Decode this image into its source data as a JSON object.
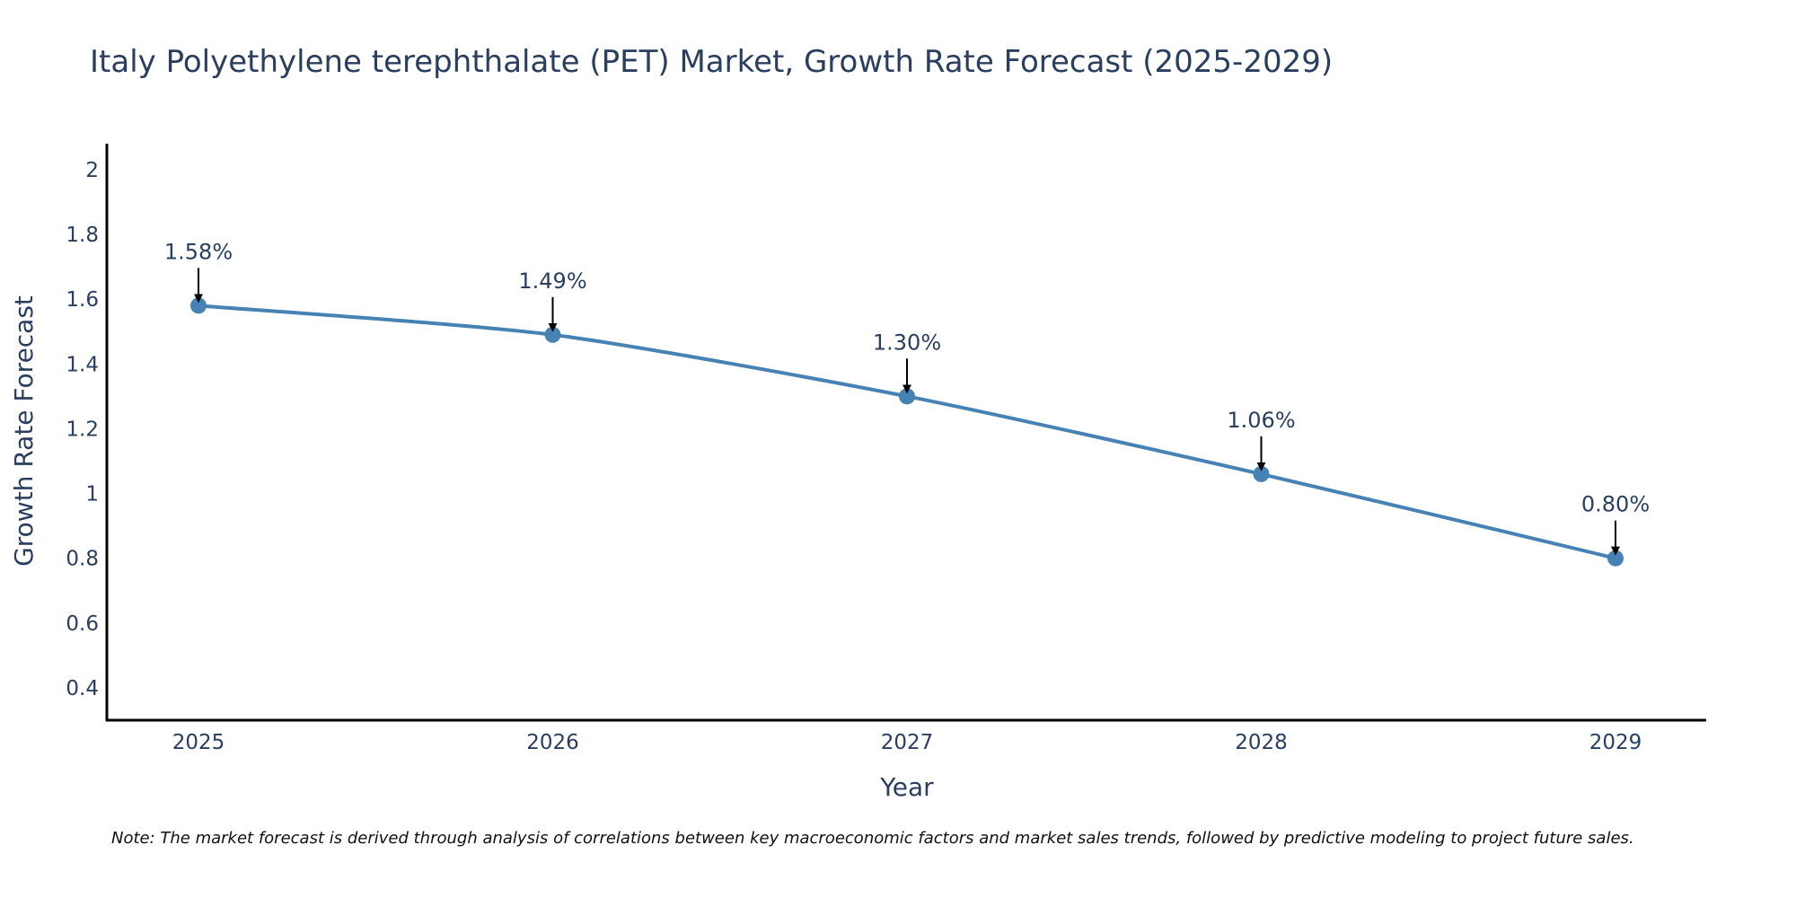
{
  "chart_data": {
    "type": "line",
    "title": "Italy Polyethylene terephthalate (PET) Market, Growth Rate Forecast (2025-2029)",
    "xlabel": "Year",
    "ylabel": "Growth Rate Forecast",
    "categories": [
      "2025",
      "2026",
      "2027",
      "2028",
      "2029"
    ],
    "series": [
      {
        "name": "Growth Rate Forecast",
        "values": [
          1.58,
          1.49,
          1.3,
          1.06,
          0.8
        ],
        "labels": [
          "1.58%",
          "1.49%",
          "1.30%",
          "1.06%",
          "0.80%"
        ]
      }
    ],
    "ylim": [
      0.3,
      2.08
    ],
    "yticks": [
      0.4,
      0.6,
      0.8,
      1.0,
      1.2,
      1.4,
      1.6,
      1.8,
      2.0
    ],
    "ytick_labels": [
      "0.4",
      "0.6",
      "0.8",
      "1",
      "1.2",
      "1.4",
      "1.6",
      "1.8",
      "2"
    ],
    "grid": false,
    "note": "Note: The market forecast is derived through analysis of correlations between key macroeconomic factors and market sales trends, followed by predictive modeling to project future sales.",
    "colors": {
      "line": "#4682b4",
      "marker": "#4682b4",
      "arrow": "#000000",
      "axis": "#000000",
      "text": "#2a3f5f"
    }
  }
}
